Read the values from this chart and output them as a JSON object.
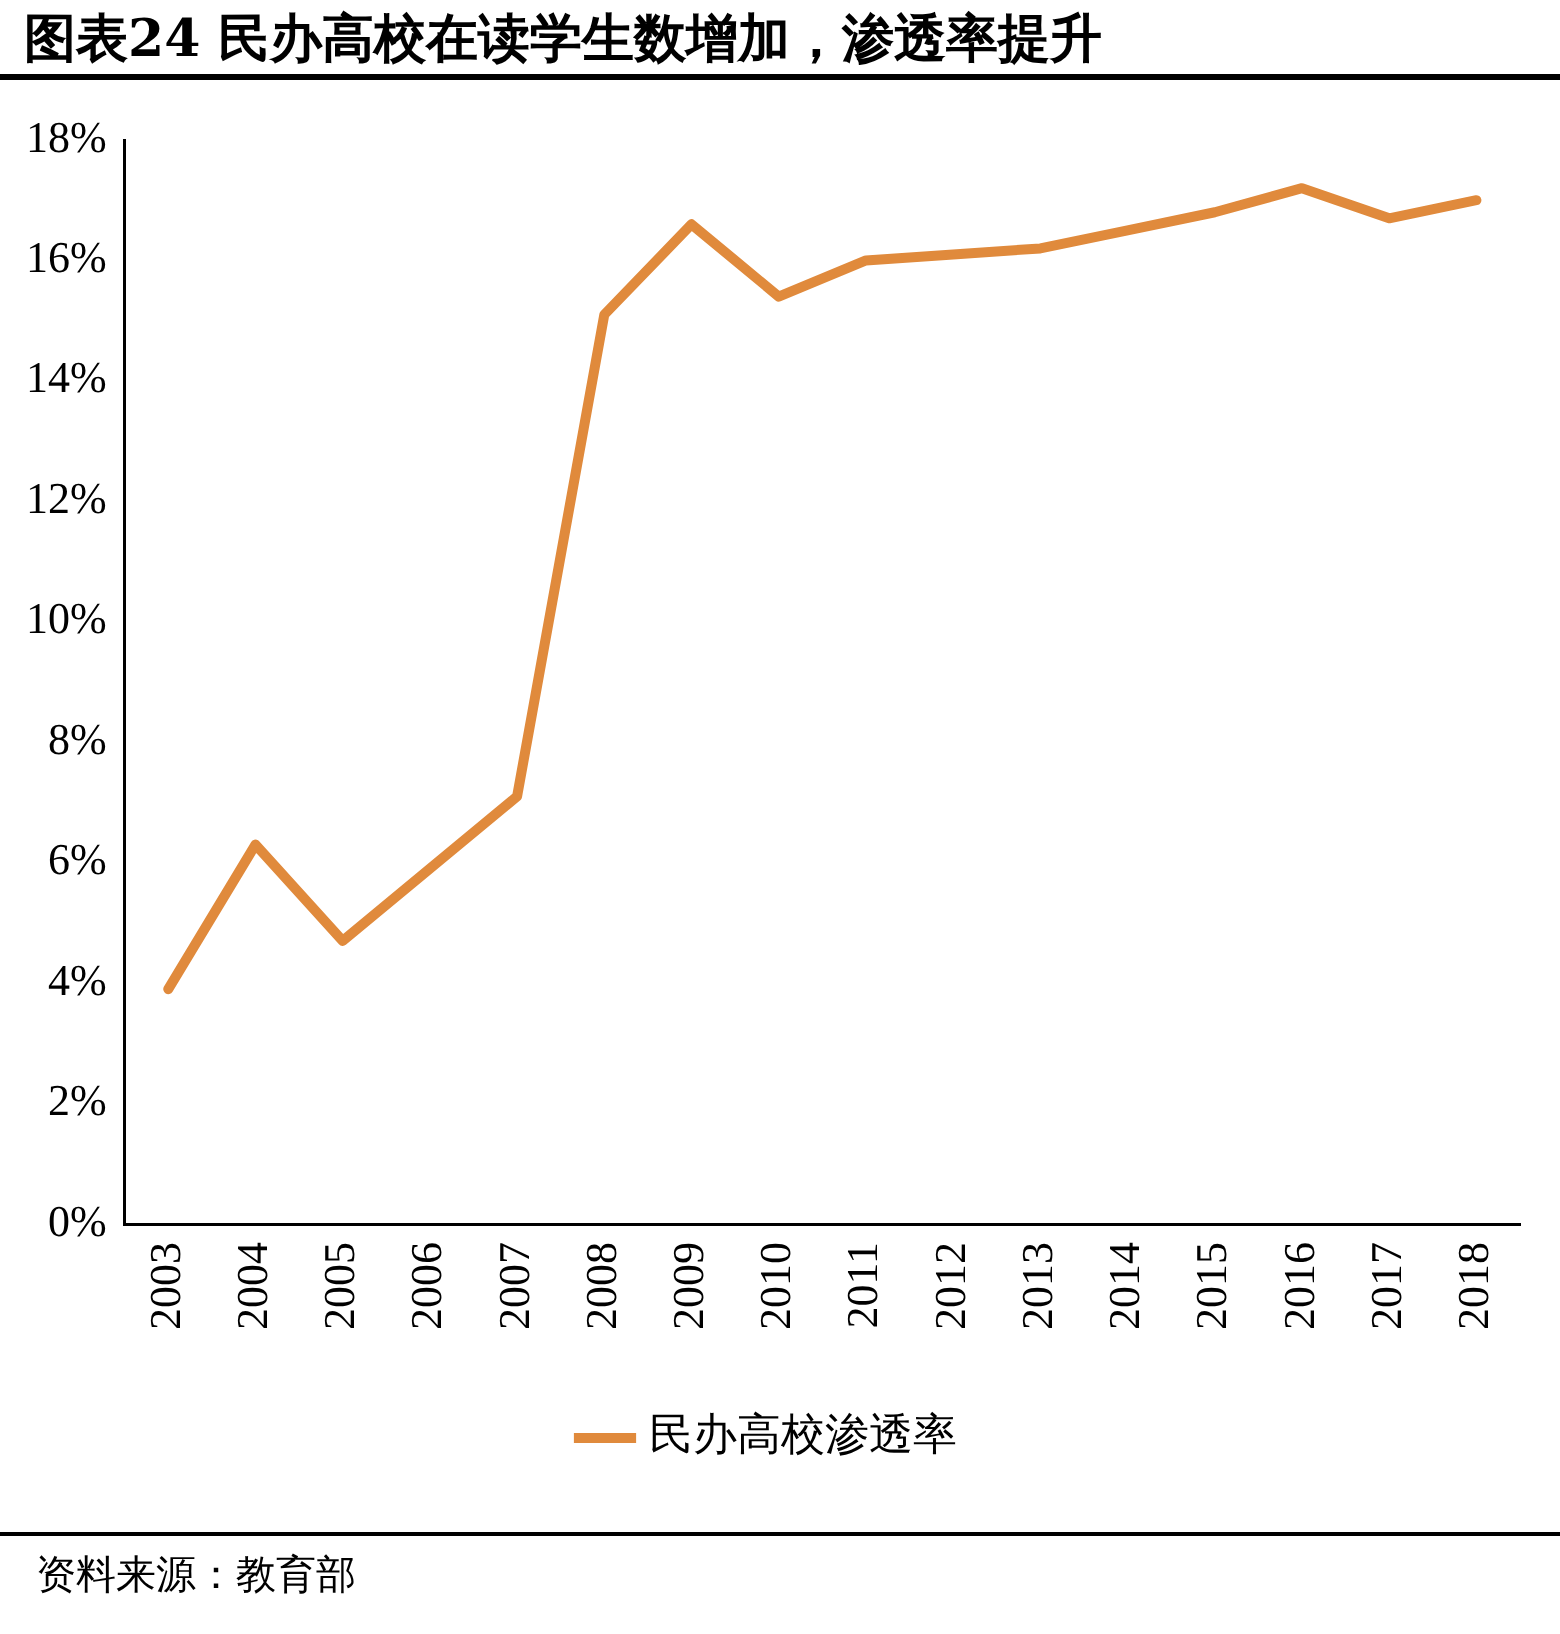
{
  "chart_data": {
    "type": "line",
    "title": "图表24 民办高校在读学生数增加，渗透率提升",
    "categories": [
      "2003",
      "2004",
      "2005",
      "2006",
      "2007",
      "2008",
      "2009",
      "2010",
      "2011",
      "2012",
      "2013",
      "2014",
      "2015",
      "2016",
      "2017",
      "2018"
    ],
    "series": [
      {
        "name": "民办高校渗透率",
        "color": "#e08a3c",
        "values": [
          3.9,
          6.3,
          4.7,
          5.9,
          7.1,
          15.1,
          16.6,
          15.4,
          16.0,
          16.1,
          16.2,
          16.5,
          16.8,
          17.2,
          16.7,
          17.0
        ]
      }
    ],
    "ylim": [
      0,
      18
    ],
    "yticks": [
      {
        "value": 0,
        "label": "0%"
      },
      {
        "value": 2,
        "label": "2%"
      },
      {
        "value": 4,
        "label": "4%"
      },
      {
        "value": 6,
        "label": "6%"
      },
      {
        "value": 8,
        "label": "8%"
      },
      {
        "value": 10,
        "label": "10%"
      },
      {
        "value": 12,
        "label": "12%"
      },
      {
        "value": 14,
        "label": "14%"
      },
      {
        "value": 16,
        "label": "16%"
      },
      {
        "value": 18,
        "label": "18%"
      }
    ],
    "grid": false,
    "legend": "bottom",
    "marker": "none",
    "line_style": "solid",
    "annotations": [
      "资料来源：教育部"
    ]
  }
}
